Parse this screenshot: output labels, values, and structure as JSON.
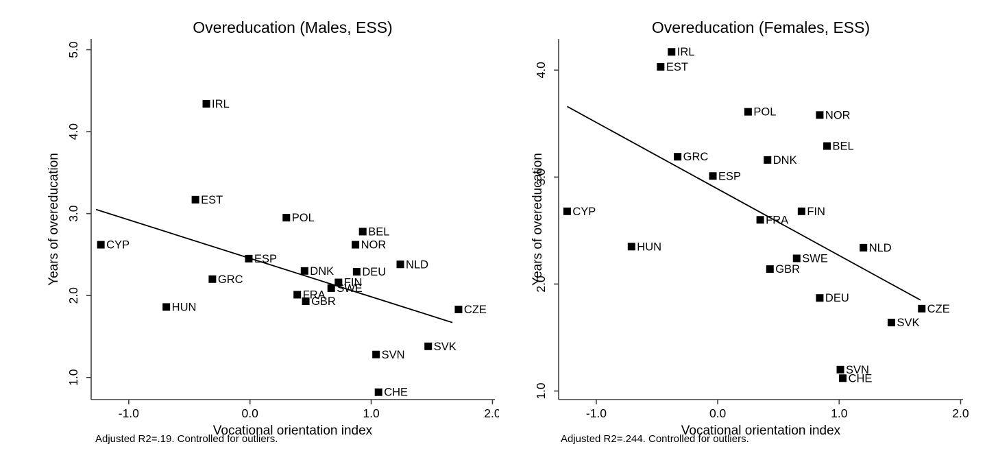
{
  "colors": {
    "background": "#ffffff",
    "point": "#000000",
    "trend_line": "#000000",
    "axis": "#3f3f3f",
    "text": "#000000"
  },
  "chart_data": [
    {
      "type": "scatter",
      "title": "Overeducation (Males, ESS)",
      "xlabel": "Vocational orientation index",
      "ylabel": "Years of overeducation",
      "footnote": "Adjusted R2=.19. Controlled for outliers.",
      "xlim": [
        -1.31,
        2.02
      ],
      "ylim": [
        0.73,
        5.13
      ],
      "xticks": [
        -1.0,
        0.0,
        1.0,
        2.0
      ],
      "yticks": [
        1.0,
        2.0,
        3.0,
        4.0,
        5.0
      ],
      "grid": false,
      "legend": "none",
      "marker": "filled-square",
      "trend_line": {
        "x1": -1.27,
        "y1": 3.05,
        "x2": 1.67,
        "y2": 1.67
      },
      "points": [
        {
          "label": "CYP",
          "x": -1.23,
          "y": 2.62
        },
        {
          "label": "HUN",
          "x": -0.69,
          "y": 1.86
        },
        {
          "label": "EST",
          "x": -0.45,
          "y": 3.17
        },
        {
          "label": "IRL",
          "x": -0.36,
          "y": 4.34
        },
        {
          "label": "GRC",
          "x": -0.31,
          "y": 2.2
        },
        {
          "label": "ESP",
          "x": -0.01,
          "y": 2.45
        },
        {
          "label": "POL",
          "x": 0.3,
          "y": 2.95
        },
        {
          "label": "FRA",
          "x": 0.39,
          "y": 2.01
        },
        {
          "label": "DNK",
          "x": 0.45,
          "y": 2.3
        },
        {
          "label": "GBR",
          "x": 0.46,
          "y": 1.93
        },
        {
          "label": "SWE",
          "x": 0.67,
          "y": 2.09
        },
        {
          "label": "FIN",
          "x": 0.73,
          "y": 2.16
        },
        {
          "label": "NOR",
          "x": 0.87,
          "y": 2.62
        },
        {
          "label": "DEU",
          "x": 0.88,
          "y": 2.29
        },
        {
          "label": "BEL",
          "x": 0.93,
          "y": 2.78
        },
        {
          "label": "SVN",
          "x": 1.04,
          "y": 1.28
        },
        {
          "label": "CHE",
          "x": 1.06,
          "y": 0.82
        },
        {
          "label": "NLD",
          "x": 1.24,
          "y": 2.38
        },
        {
          "label": "SVK",
          "x": 1.47,
          "y": 1.38
        },
        {
          "label": "CZE",
          "x": 1.72,
          "y": 1.83
        }
      ]
    },
    {
      "type": "scatter",
      "title": "Overeducation (Females, ESS)",
      "xlabel": "Vocational orientation index",
      "ylabel": "Years of overeducation",
      "footnote": "Adjusted R2=.244. Controlled for outliers.",
      "xlim": [
        -1.31,
        2.02
      ],
      "ylim": [
        0.92,
        4.29
      ],
      "xticks": [
        -1.0,
        0.0,
        1.0,
        2.0
      ],
      "yticks": [
        1.0,
        2.0,
        3.0,
        4.0
      ],
      "grid": false,
      "legend": "none",
      "marker": "filled-square",
      "trend_line": {
        "x1": -1.24,
        "y1": 3.66,
        "x2": 1.67,
        "y2": 1.85
      },
      "points": [
        {
          "label": "CYP",
          "x": -1.24,
          "y": 2.68
        },
        {
          "label": "HUN",
          "x": -0.71,
          "y": 2.35
        },
        {
          "label": "EST",
          "x": -0.47,
          "y": 4.03
        },
        {
          "label": "IRL",
          "x": -0.38,
          "y": 4.17
        },
        {
          "label": "GRC",
          "x": -0.33,
          "y": 3.19
        },
        {
          "label": "ESP",
          "x": -0.04,
          "y": 3.01
        },
        {
          "label": "POL",
          "x": 0.25,
          "y": 3.61
        },
        {
          "label": "FRA",
          "x": 0.35,
          "y": 2.6
        },
        {
          "label": "DNK",
          "x": 0.41,
          "y": 3.16
        },
        {
          "label": "GBR",
          "x": 0.43,
          "y": 2.14
        },
        {
          "label": "SWE",
          "x": 0.65,
          "y": 2.24
        },
        {
          "label": "FIN",
          "x": 0.69,
          "y": 2.68
        },
        {
          "label": "NOR",
          "x": 0.84,
          "y": 3.58
        },
        {
          "label": "DEU",
          "x": 0.84,
          "y": 1.87
        },
        {
          "label": "BEL",
          "x": 0.9,
          "y": 3.29
        },
        {
          "label": "SVN",
          "x": 1.01,
          "y": 1.2
        },
        {
          "label": "CHE",
          "x": 1.03,
          "y": 1.12
        },
        {
          "label": "NLD",
          "x": 1.2,
          "y": 2.34
        },
        {
          "label": "SVK",
          "x": 1.43,
          "y": 1.64
        },
        {
          "label": "CZE",
          "x": 1.68,
          "y": 1.77
        }
      ]
    }
  ]
}
